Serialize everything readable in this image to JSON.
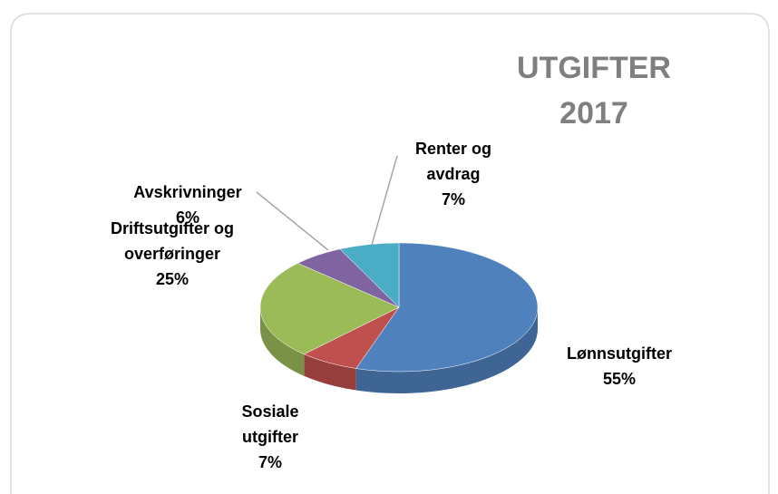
{
  "chart_data": {
    "type": "pie",
    "title": "UTGIFTER 2017",
    "categories": [
      "Lønnsutgifter",
      "Sosiale utgifter",
      "Driftsutgifter og overføringer",
      "Avskrivninger",
      "Renter og avdrag"
    ],
    "values": [
      55,
      7,
      25,
      6,
      7
    ],
    "value_labels": [
      "55%",
      "7%",
      "25%",
      "6%",
      "7%"
    ],
    "colors": [
      "#4f81bd",
      "#c0504d",
      "#9bbb59",
      "#8064a2",
      "#4bacc6"
    ]
  }
}
